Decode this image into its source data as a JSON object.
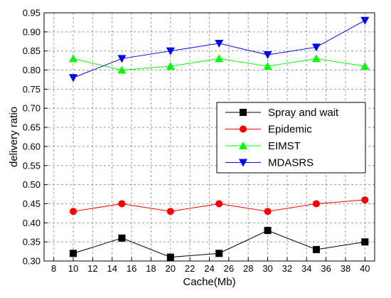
{
  "chart_data": {
    "type": "line",
    "title": "",
    "xlabel": "Cache(Mb)",
    "ylabel": "delivery ratio",
    "xlim": [
      7,
      41
    ],
    "ylim": [
      0.3,
      0.95
    ],
    "x_ticks": [
      "8",
      "10",
      "12",
      "14",
      "16",
      "18",
      "20",
      "22",
      "24",
      "26",
      "28",
      "30",
      "32",
      "34",
      "36",
      "38",
      "40"
    ],
    "y_ticks": [
      "0.30",
      "0.35",
      "0.40",
      "0.45",
      "0.50",
      "0.55",
      "0.60",
      "0.65",
      "0.70",
      "0.75",
      "0.80",
      "0.85",
      "0.90",
      "0.95"
    ],
    "grid": true,
    "legend_position": "center-right",
    "x": [
      10,
      15,
      20,
      25,
      30,
      35,
      40
    ],
    "series": [
      {
        "name": "Spray and wait",
        "color": "#000000",
        "marker": "square",
        "values": [
          0.32,
          0.36,
          0.31,
          0.32,
          0.38,
          0.33,
          0.35
        ]
      },
      {
        "name": "Epidemic",
        "color": "#ff0000",
        "marker": "circle",
        "values": [
          0.43,
          0.45,
          0.43,
          0.45,
          0.43,
          0.45,
          0.46
        ]
      },
      {
        "name": "EIMST",
        "color": "#00ff00",
        "marker": "triangle-up",
        "values": [
          0.83,
          0.8,
          0.81,
          0.83,
          0.81,
          0.83,
          0.81
        ]
      },
      {
        "name": "MDASRS",
        "color": "#0000ff",
        "marker": "triangle-down",
        "values": [
          0.78,
          0.83,
          0.85,
          0.87,
          0.84,
          0.86,
          0.93
        ]
      }
    ]
  }
}
